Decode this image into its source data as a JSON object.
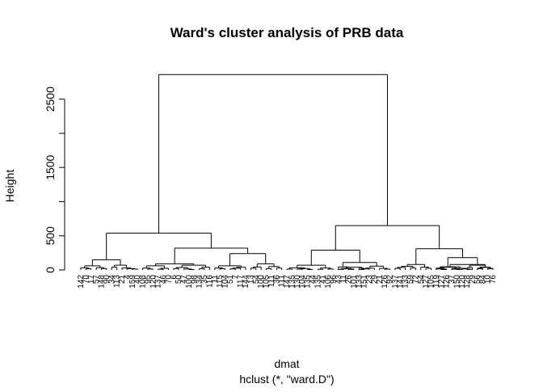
{
  "chart_data": {
    "type": "dendrogram",
    "title": "Ward's cluster analysis of PRB data",
    "ylabel": "Height",
    "xlabel": "dmat",
    "subtitle": "hclust (*, \"ward.D\")",
    "ylim": [
      0,
      2900
    ],
    "yticks": [
      0,
      500,
      1500,
      2500
    ],
    "ytick_labels": [
      "0",
      "500",
      "1500",
      "2500"
    ],
    "ytick_marks": [
      0,
      500,
      1000,
      1500,
      2000,
      2500
    ],
    "merges": [
      {
        "left": [
          0,
          1
        ],
        "right": [
          1,
          1
        ],
        "height": 2860
      },
      {
        "left": [
          0,
          2
        ],
        "right": [
          0,
          3
        ],
        "height": 540
      },
      {
        "left": [
          0,
          4
        ],
        "right": [
          0,
          5
        ],
        "height": 150
      },
      {
        "left": [
          0,
          6
        ],
        "right": [
          0,
          7
        ],
        "height": 70
      },
      {
        "left": [
          0,
          8
        ],
        "right": [
          0,
          9
        ],
        "height": 60
      },
      {
        "left": [
          0,
          3,
          "rest"
        ],
        "right": [
          0,
          10
        ],
        "height": 320
      },
      {
        "left": [
          0,
          11
        ],
        "right": [
          0,
          12
        ],
        "height": 240
      },
      {
        "left": [
          1,
          2
        ],
        "right": [
          1,
          3
        ],
        "height": 650
      },
      {
        "left": [
          1,
          4
        ],
        "right": [
          1,
          5
        ],
        "height": 290
      },
      {
        "left": [
          1,
          6
        ],
        "right": [
          1,
          7
        ],
        "height": 310
      },
      {
        "left": [
          1,
          8
        ],
        "right": [
          1,
          9
        ],
        "height": 180
      }
    ],
    "leaf_labels": [
      "142",
      "70",
      "17",
      "57",
      "148",
      "90",
      "34",
      "113",
      "21",
      "4",
      "159",
      "40",
      "108",
      "95",
      "120",
      "137",
      "46",
      "70",
      "6",
      "50",
      "47",
      "100",
      "98",
      "134",
      "35",
      "116",
      "11",
      "115",
      "104",
      "51",
      "7",
      "117",
      "144",
      "13",
      "54",
      "100",
      "105",
      "111",
      "36",
      "111",
      "147",
      "135",
      "130",
      "104",
      "135",
      "44",
      "135",
      "41",
      "106",
      "96",
      "43",
      "11",
      "26",
      "101",
      "133",
      "151",
      "23",
      "29",
      "21",
      "126",
      "92",
      "137",
      "141",
      "133",
      "59",
      "72",
      "54",
      "127",
      "105",
      "119",
      "127",
      "126",
      "37",
      "150",
      "120",
      "128",
      "29",
      "56",
      "84",
      "10",
      "76"
    ]
  }
}
